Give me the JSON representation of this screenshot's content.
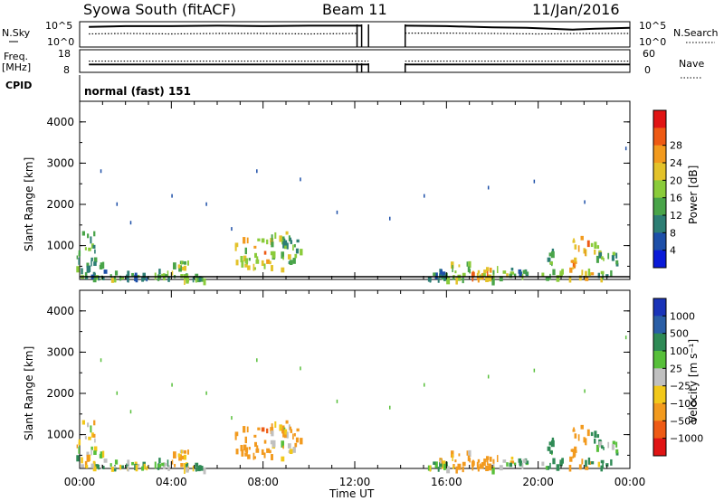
{
  "header": {
    "station": "Syowa South (fitACF)",
    "beam": "Beam 11",
    "date": "11/Jan/2016"
  },
  "left_labels": {
    "nsky": "N.Sky",
    "freq": "Freq.",
    "freq_unit": "[MHz]",
    "cpid": "CPID"
  },
  "right_labels": {
    "nsearch": "N.Search",
    "nave": "Nave"
  },
  "cpid_text": "normal (fast) 151",
  "axes": {
    "x_label": "Time UT",
    "y_label": "Slant Range [km]"
  },
  "chart_data": [
    {
      "type": "line",
      "name": "nsky-nsearch",
      "left_ticks": [
        "10^5",
        "10^0"
      ],
      "right_ticks": [
        "10^5",
        "10^0"
      ],
      "x_range_hours": [
        0,
        24
      ],
      "series": [
        {
          "style": "solid",
          "x": [
            0.4,
            2,
            4,
            6,
            8,
            10,
            12.1,
            12.3,
            14.2,
            16,
            18,
            19.5,
            21.5,
            22.5,
            24
          ],
          "y": [
            4.2,
            4.4,
            4.4,
            4.5,
            4.4,
            4.5,
            4.5,
            4.5,
            4.5,
            4.4,
            4.1,
            4.0,
            3.6,
            3.8,
            4.0
          ]
        },
        {
          "style": "dotted",
          "x": [
            0.4,
            2,
            4,
            6,
            8,
            10,
            12.1,
            14.2,
            16,
            18,
            20,
            22,
            24
          ],
          "y": [
            2.6,
            2.7,
            2.6,
            2.7,
            2.7,
            2.6,
            2.7,
            2.8,
            2.8,
            2.7,
            2.6,
            2.7,
            2.7
          ]
        }
      ],
      "gap_hours": [
        12.6,
        14.2
      ]
    },
    {
      "type": "line",
      "name": "freq-nave",
      "left_ticks": [
        "18",
        "8"
      ],
      "right_ticks": [
        "60",
        "0"
      ],
      "series": [
        {
          "style": "solid",
          "x": [
            0.4,
            12.6,
            14.2,
            24
          ],
          "y": [
            11.5,
            11.5,
            11.5,
            11.5
          ]
        },
        {
          "style": "dotted",
          "x": [
            0.4,
            12.6,
            14.2,
            24
          ],
          "y": [
            13.2,
            13.2,
            13.2,
            13.2
          ]
        }
      ]
    },
    {
      "type": "heatmap",
      "name": "power",
      "y_ticks": [
        "1000",
        "2000",
        "3000",
        "4000"
      ],
      "ylim": [
        180,
        4500
      ],
      "x_ticks": [
        "00:00",
        "04:00",
        "08:00",
        "12:00",
        "16:00",
        "20:00",
        "00:00"
      ],
      "colorbar_label": "Power [dB]",
      "colorbar_ticks": [
        "4",
        "8",
        "12",
        "16",
        "20",
        "24",
        "28"
      ],
      "colorbar_colors": [
        "#0a1ad8",
        "#1d4fa8",
        "#2d7e74",
        "#49a449",
        "#8acb3a",
        "#e3c22a",
        "#f29a1e",
        "#ee5a14",
        "#e01414"
      ]
    },
    {
      "type": "heatmap",
      "name": "velocity",
      "y_ticks": [
        "1000",
        "2000",
        "3000",
        "4000"
      ],
      "ylim": [
        180,
        4500
      ],
      "x_ticks": [
        "00:00",
        "04:00",
        "08:00",
        "12:00",
        "16:00",
        "20:00",
        "00:00"
      ],
      "colorbar_label": "Velocity [m s⁻¹]",
      "colorbar_ticks": [
        "1000",
        "500",
        "100",
        "25",
        "−25",
        "−100",
        "−500",
        "−1000"
      ],
      "colorbar_colors": [
        "#1a34b8",
        "#2a5ea6",
        "#2e8a55",
        "#57bf3a",
        "#c0c0c0",
        "#f2c81a",
        "#f29a1e",
        "#ee5a14",
        "#e01414"
      ]
    }
  ],
  "echo_clusters": [
    {
      "t": 0.05,
      "r0": 250,
      "r1": 1400,
      "pw": 12,
      "v": 30
    },
    {
      "t": 0.5,
      "r0": 220,
      "r1": 650,
      "pw": 10,
      "v": -20
    },
    {
      "t": 1.5,
      "r0": 200,
      "r1": 450,
      "pw": 14,
      "v": 50
    },
    {
      "t": 2.3,
      "r0": 200,
      "r1": 350,
      "pw": 10,
      "v": 0
    },
    {
      "t": 3.5,
      "r0": 250,
      "r1": 450,
      "pw": 12,
      "v": 50
    },
    {
      "t": 4.1,
      "r0": 200,
      "r1": 650,
      "pw": 16,
      "v": -150
    },
    {
      "t": 4.8,
      "r0": 200,
      "r1": 350,
      "pw": 12,
      "v": 100
    },
    {
      "t": 7.0,
      "r0": 450,
      "r1": 1300,
      "pw": 18,
      "v": -250
    },
    {
      "t": 7.8,
      "r0": 500,
      "r1": 1250,
      "pw": 20,
      "v": -400
    },
    {
      "t": 8.5,
      "r0": 450,
      "r1": 1350,
      "pw": 16,
      "v": -120
    },
    {
      "t": 9.0,
      "r0": 550,
      "r1": 1250,
      "pw": 12,
      "v": -100
    },
    {
      "t": 15.4,
      "r0": 200,
      "r1": 450,
      "pw": 10,
      "v": 0
    },
    {
      "t": 16.4,
      "r0": 200,
      "r1": 650,
      "pw": 16,
      "v": -150
    },
    {
      "t": 17.3,
      "r0": 200,
      "r1": 500,
      "pw": 22,
      "v": -300
    },
    {
      "t": 18.2,
      "r0": 200,
      "r1": 550,
      "pw": 14,
      "v": -50
    },
    {
      "t": 18.9,
      "r0": 300,
      "r1": 450,
      "pw": 10,
      "v": 50
    },
    {
      "t": 20.4,
      "r0": 200,
      "r1": 950,
      "pw": 12,
      "v": 150
    },
    {
      "t": 21.6,
      "r0": 200,
      "r1": 1300,
      "pw": 22,
      "v": -300
    },
    {
      "t": 22.2,
      "r0": 250,
      "r1": 1100,
      "pw": 18,
      "v": 300
    },
    {
      "t": 22.8,
      "r0": 250,
      "r1": 850,
      "pw": 12,
      "v": 120
    }
  ],
  "scatter_points": [
    {
      "t": 0.9,
      "r": 2850
    },
    {
      "t": 1.6,
      "r": 2050
    },
    {
      "t": 2.2,
      "r": 1600
    },
    {
      "t": 4.0,
      "r": 2250
    },
    {
      "t": 5.5,
      "r": 2050
    },
    {
      "t": 6.6,
      "r": 1450
    },
    {
      "t": 7.7,
      "r": 2850
    },
    {
      "t": 9.6,
      "r": 2650
    },
    {
      "t": 11.2,
      "r": 1850
    },
    {
      "t": 13.5,
      "r": 1700
    },
    {
      "t": 15.0,
      "r": 2250
    },
    {
      "t": 17.8,
      "r": 2450
    },
    {
      "t": 19.8,
      "r": 2600
    },
    {
      "t": 22.0,
      "r": 2100
    },
    {
      "t": 23.8,
      "r": 3400
    }
  ]
}
